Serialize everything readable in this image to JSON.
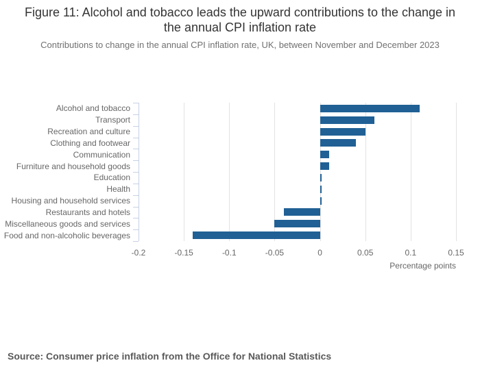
{
  "figure": {
    "title": "Figure 11: Alcohol and tobacco leads the upward contributions to the change in the annual CPI inflation rate",
    "subtitle": "Contributions to change in the annual CPI inflation rate, UK, between November and December 2023",
    "source": "Source: Consumer price inflation from the Office for National Statistics"
  },
  "chart_data": {
    "type": "bar",
    "orientation": "horizontal",
    "title": "Figure 11: Alcohol and tobacco leads the upward contributions to the change in the annual CPI inflation rate",
    "subtitle": "Contributions to change in the annual CPI inflation rate, UK, between November and December 2023",
    "categories": [
      "Alcohol and tobacco",
      "Transport",
      "Recreation and culture",
      "Clothing and footwear",
      "Communication",
      "Furniture and household goods",
      "Education",
      "Health",
      "Housing and household services",
      "Restaurants and hotels",
      "Miscellaneous goods and services",
      "Food and non-alcoholic beverages"
    ],
    "values": [
      0.11,
      0.06,
      0.05,
      0.04,
      0.01,
      0.01,
      0.0,
      0.0,
      0.0,
      -0.04,
      -0.05,
      -0.14
    ],
    "xlabel": "Percentage points",
    "ylabel": "",
    "xlim": [
      -0.2,
      0.15
    ],
    "xticks": [
      -0.2,
      -0.15,
      -0.1,
      -0.05,
      0,
      0.05,
      0.1,
      0.15
    ],
    "xtick_labels": [
      "-0.2",
      "-0.15",
      "-0.1",
      "-0.05",
      "0",
      "0.05",
      "0.1",
      "0.15"
    ],
    "grid": true,
    "legend": false,
    "bar_color": "#206095",
    "grid_color": "#e2e2e2",
    "axis_color": "#c6d0e4",
    "label_color": "#666666"
  }
}
